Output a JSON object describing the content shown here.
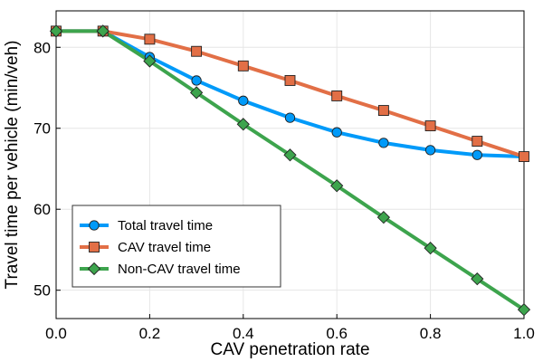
{
  "chart_data": {
    "type": "line",
    "title": "",
    "xlabel": "CAV penetration rate",
    "ylabel": "Travel time per vehicle (min/veh)",
    "x": [
      0.0,
      0.1,
      0.2,
      0.3,
      0.4,
      0.5,
      0.6,
      0.7,
      0.8,
      0.9,
      1.0
    ],
    "xlim": [
      0.0,
      1.0
    ],
    "ylim": [
      46.5,
      84.5
    ],
    "xticks": [
      0.0,
      0.2,
      0.4,
      0.6,
      0.8,
      1.0
    ],
    "xtick_labels": [
      "0.0",
      "0.2",
      "0.4",
      "0.6",
      "0.8",
      "1.0"
    ],
    "yticks": [
      50,
      60,
      70,
      80
    ],
    "ytick_labels": [
      "50",
      "60",
      "70",
      "80"
    ],
    "grid": true,
    "legend_position": "bottom-left",
    "series": [
      {
        "name": "Total travel time",
        "color": "#009af9",
        "marker": "circle",
        "values": [
          82.0,
          82.0,
          78.8,
          75.9,
          73.4,
          71.3,
          69.5,
          68.2,
          67.3,
          66.7,
          66.5
        ]
      },
      {
        "name": "CAV travel time",
        "color": "#e26f46",
        "marker": "square",
        "values": [
          82.0,
          82.0,
          81.0,
          79.5,
          77.7,
          75.9,
          74.0,
          72.2,
          70.3,
          68.4,
          66.5
        ]
      },
      {
        "name": "Non-CAV travel time",
        "color": "#3da44d",
        "marker": "diamond",
        "values": [
          82.0,
          82.0,
          78.3,
          74.4,
          70.5,
          66.7,
          62.9,
          59.0,
          55.2,
          51.4,
          47.6
        ]
      }
    ]
  }
}
